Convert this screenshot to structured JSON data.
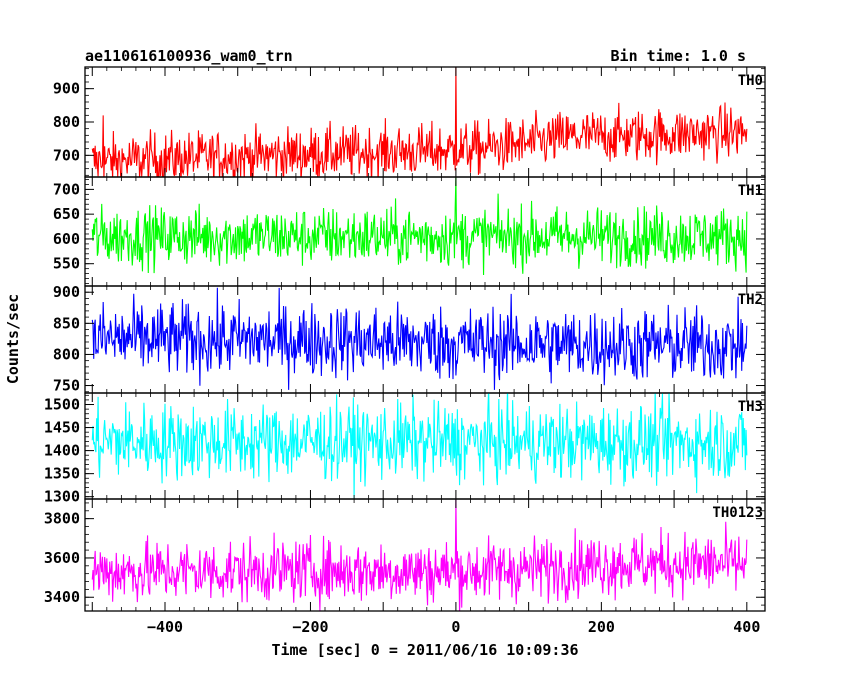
{
  "chart_data": {
    "type": "line",
    "title": "ae110616100936_wam0_trn",
    "bin_time": "Bin time: 1.0 s",
    "xlabel": "Time [sec] 0 = 2011/06/16 10:09:36",
    "ylabel": "Counts/sec",
    "xlim": [
      -510,
      425
    ],
    "x_ticks": [
      -400,
      -200,
      0,
      200,
      400
    ],
    "x_tick_labels": [
      "−400",
      "−200",
      "0",
      "200",
      "400"
    ],
    "x_range": [
      -500,
      400
    ],
    "grid": false,
    "panels": [
      {
        "name": "TH0",
        "color": "#ff0000",
        "ylim": [
          635,
          965
        ],
        "y_ticks": [
          700,
          800,
          900
        ],
        "trend": [
          [
            -500,
            680
          ],
          [
            -400,
            690
          ],
          [
            -300,
            697
          ],
          [
            -200,
            705
          ],
          [
            -100,
            710
          ],
          [
            0,
            715
          ],
          [
            100,
            735
          ],
          [
            150,
            755
          ],
          [
            250,
            760
          ],
          [
            400,
            770
          ]
        ],
        "noise": 40,
        "features": [
          {
            "x": 0,
            "peak": 965,
            "label": "spike"
          },
          {
            "x": -485,
            "peak": 820,
            "label": "early spike"
          }
        ]
      },
      {
        "name": "TH1",
        "color": "#00ff00",
        "ylim": [
          505,
          725
        ],
        "y_ticks": [
          550,
          600,
          650,
          700
        ],
        "trend": [
          [
            -500,
            605
          ],
          [
            400,
            605
          ]
        ],
        "noise": 30,
        "features": [
          {
            "x": 0,
            "peak": 725,
            "label": "spike"
          }
        ]
      },
      {
        "name": "TH2",
        "color": "#0000ff",
        "ylim": [
          738,
          910
        ],
        "y_ticks": [
          750,
          800,
          850,
          900
        ],
        "trend": [
          [
            -500,
            825
          ],
          [
            -200,
            823
          ],
          [
            0,
            818
          ],
          [
            200,
            815
          ],
          [
            400,
            815
          ]
        ],
        "noise": 30
      },
      {
        "name": "TH3",
        "color": "#00ffff",
        "ylim": [
          1295,
          1525
        ],
        "y_ticks": [
          1300,
          1350,
          1400,
          1450,
          1500
        ],
        "trend": [
          [
            -500,
            1420
          ],
          [
            400,
            1418
          ]
        ],
        "noise": 42
      },
      {
        "name": "TH0123",
        "color": "#ff00ff",
        "ylim": [
          3330,
          3900
        ],
        "y_ticks": [
          3400,
          3600,
          3800
        ],
        "trend": [
          [
            -500,
            3530
          ],
          [
            -200,
            3535
          ],
          [
            0,
            3530
          ],
          [
            100,
            3545
          ],
          [
            200,
            3570
          ],
          [
            400,
            3570
          ]
        ],
        "noise": 80,
        "features": [
          {
            "x": 0,
            "peak": 3900,
            "label": "spike"
          }
        ]
      }
    ]
  }
}
